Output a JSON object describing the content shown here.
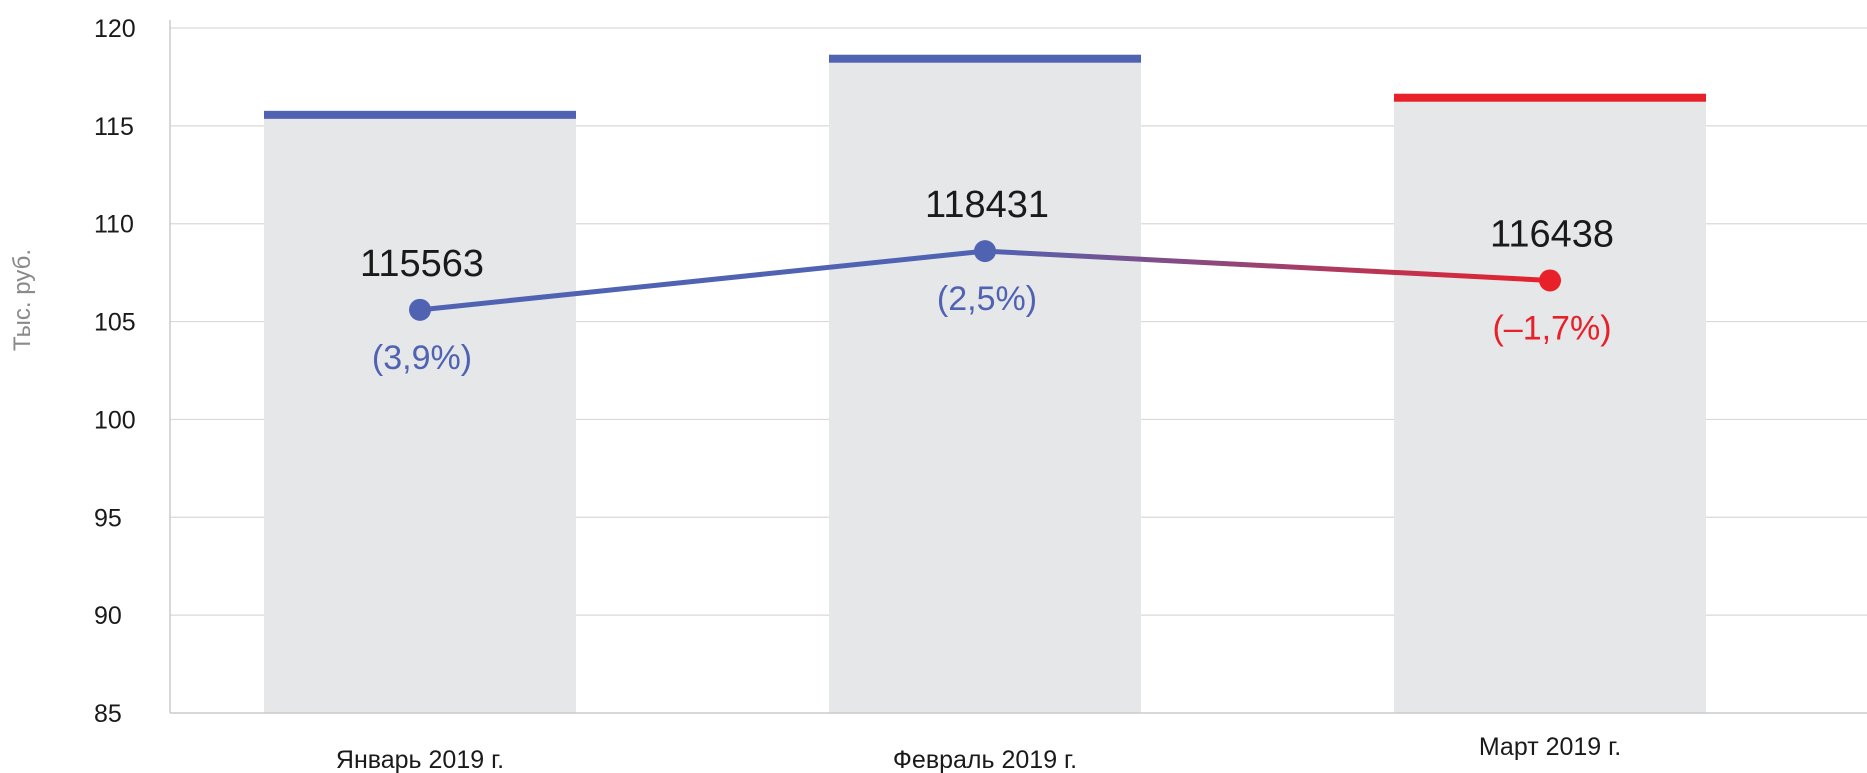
{
  "chart_data": {
    "type": "bar",
    "ylabel": "Тыс. руб.",
    "ylim": [
      85,
      120
    ],
    "yticks": [
      "85",
      "90",
      "95",
      "100",
      "105",
      "110",
      "115",
      "120"
    ],
    "grid": true,
    "categories": [
      "Январь 2019 г.",
      "Февраль 2019 г.",
      "Март 2019 г."
    ],
    "values": [
      115.563,
      118.431,
      116.438
    ],
    "value_labels": [
      "115563",
      "118431",
      "116438"
    ],
    "line": {
      "values": [
        105.6,
        108.6,
        107.1
      ],
      "change_labels": [
        "(3,9%)",
        "(2,5%)",
        "(–1,7%)"
      ],
      "change_colors": [
        "#5063b3",
        "#5063b3",
        "#e8202a"
      ]
    },
    "colors": {
      "bar_fill": "#e6e7e9",
      "positive": "#5063b3",
      "negative": "#e8202a",
      "grid": "#d9d9d9",
      "axis": "#cccccc"
    }
  }
}
